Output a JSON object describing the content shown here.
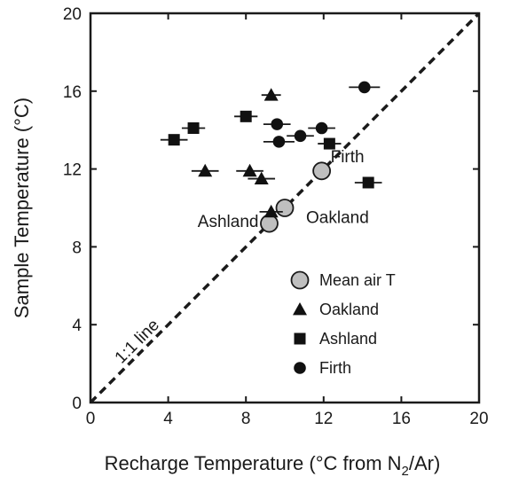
{
  "chart_data": {
    "type": "scatter",
    "xlabel": {
      "main": "Recharge Temperature (°C from N",
      "sub": "2",
      "tail": "/Ar)"
    },
    "ylabel": "Sample Temperature (°C)",
    "xlim": [
      0,
      20
    ],
    "ylim": [
      0,
      20
    ],
    "xticks": [
      0,
      4,
      8,
      12,
      16,
      20
    ],
    "yticks": [
      0,
      4,
      8,
      12,
      16,
      20
    ],
    "grid": false,
    "legend_position": "bottom-right",
    "reference_line": {
      "label": "1:1 line",
      "x": [
        0,
        20
      ],
      "y": [
        0,
        20
      ]
    },
    "series": [
      {
        "name": "Mean air T",
        "marker": "circle-open-gray",
        "points": [
          {
            "x": 9.2,
            "y": 9.2
          },
          {
            "x": 10.0,
            "y": 10.0
          },
          {
            "x": 11.9,
            "y": 11.9
          }
        ]
      },
      {
        "name": "Oakland",
        "marker": "triangle",
        "points": [
          {
            "x": 9.3,
            "y": 15.8,
            "xerr": 0.5
          },
          {
            "x": 5.9,
            "y": 11.9,
            "xerr": 0.7
          },
          {
            "x": 8.2,
            "y": 11.9,
            "xerr": 0.7
          },
          {
            "x": 8.8,
            "y": 11.5,
            "xerr": 0.7
          },
          {
            "x": 9.3,
            "y": 9.8,
            "xerr": 0.6
          }
        ]
      },
      {
        "name": "Ashland",
        "marker": "square",
        "points": [
          {
            "x": 5.3,
            "y": 14.1,
            "xerr": 0.6
          },
          {
            "x": 8.0,
            "y": 14.7,
            "xerr": 0.6
          },
          {
            "x": 4.3,
            "y": 13.5,
            "xerr": 0.7
          },
          {
            "x": 12.3,
            "y": 13.3,
            "xerr": 0.6
          },
          {
            "x": 14.3,
            "y": 11.3,
            "xerr": 0.7
          }
        ]
      },
      {
        "name": "Firth",
        "marker": "circle-filled",
        "points": [
          {
            "x": 14.1,
            "y": 16.2,
            "xerr": 0.8
          },
          {
            "x": 9.6,
            "y": 14.3,
            "xerr": 0.7
          },
          {
            "x": 11.9,
            "y": 14.1,
            "xerr": 0.7
          },
          {
            "x": 10.8,
            "y": 13.7,
            "xerr": 0.7
          },
          {
            "x": 9.7,
            "y": 13.4,
            "xerr": 0.8
          }
        ]
      }
    ],
    "annotations": [
      {
        "text": "Firth",
        "near": "mean-air-firth"
      },
      {
        "text": "Ashland",
        "near": "mean-air-ashland"
      },
      {
        "text": "Oakland",
        "near": "mean-air-oakland"
      }
    ]
  }
}
